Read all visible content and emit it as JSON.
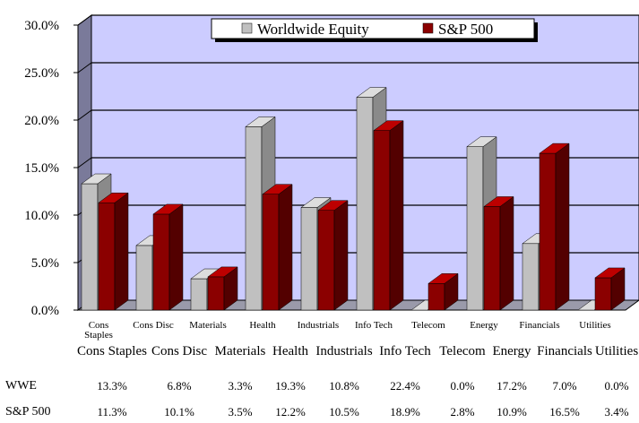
{
  "chart_data": {
    "type": "bar",
    "categories": [
      "Cons Staples",
      "Cons Disc",
      "Materials",
      "Health",
      "Industrials",
      "Info Tech",
      "Telecom",
      "Energy",
      "Financials",
      "Utilities"
    ],
    "axis_category_labels": [
      [
        "Cons",
        "Staples"
      ],
      [
        "Cons Disc"
      ],
      [
        "Materials"
      ],
      [
        "Health"
      ],
      [
        "Industrials"
      ],
      [
        "Info Tech"
      ],
      [
        "Telecom"
      ],
      [
        "Energy"
      ],
      [
        "Financials"
      ],
      [
        "Utilities"
      ]
    ],
    "series": [
      {
        "name": "Worldwide Equity",
        "values": [
          13.3,
          6.8,
          3.3,
          19.3,
          10.8,
          22.4,
          0.0,
          17.2,
          7.0,
          0.0
        ],
        "color": "#c0c0c0"
      },
      {
        "name": "S&P 500",
        "values": [
          11.3,
          10.1,
          3.5,
          12.2,
          10.5,
          18.9,
          2.8,
          10.9,
          16.5,
          3.4
        ],
        "color": "#8b0000"
      }
    ],
    "y_ticks": [
      "0.0%",
      "5.0%",
      "10.0%",
      "15.0%",
      "20.0%",
      "25.0%",
      "30.0%"
    ],
    "ylim": [
      0,
      30
    ],
    "grid": true,
    "legend": "top-center",
    "wall_color": "#ccccff"
  },
  "table": {
    "headers": [
      "Cons Staples",
      "Cons Disc",
      "Materials",
      "Health",
      "Industrials",
      "Info Tech",
      "Telecom",
      "Energy",
      "Financials",
      "Utilities"
    ],
    "rows": [
      {
        "label": "WWE",
        "values": [
          "13.3%",
          "6.8%",
          "3.3%",
          "19.3%",
          "10.8%",
          "22.4%",
          "0.0%",
          "17.2%",
          "7.0%",
          "0.0%"
        ]
      },
      {
        "label": "S&P 500",
        "values": [
          "11.3%",
          "10.1%",
          "3.5%",
          "12.2%",
          "10.5%",
          "18.9%",
          "2.8%",
          "10.9%",
          "16.5%",
          "3.4%"
        ]
      }
    ]
  }
}
